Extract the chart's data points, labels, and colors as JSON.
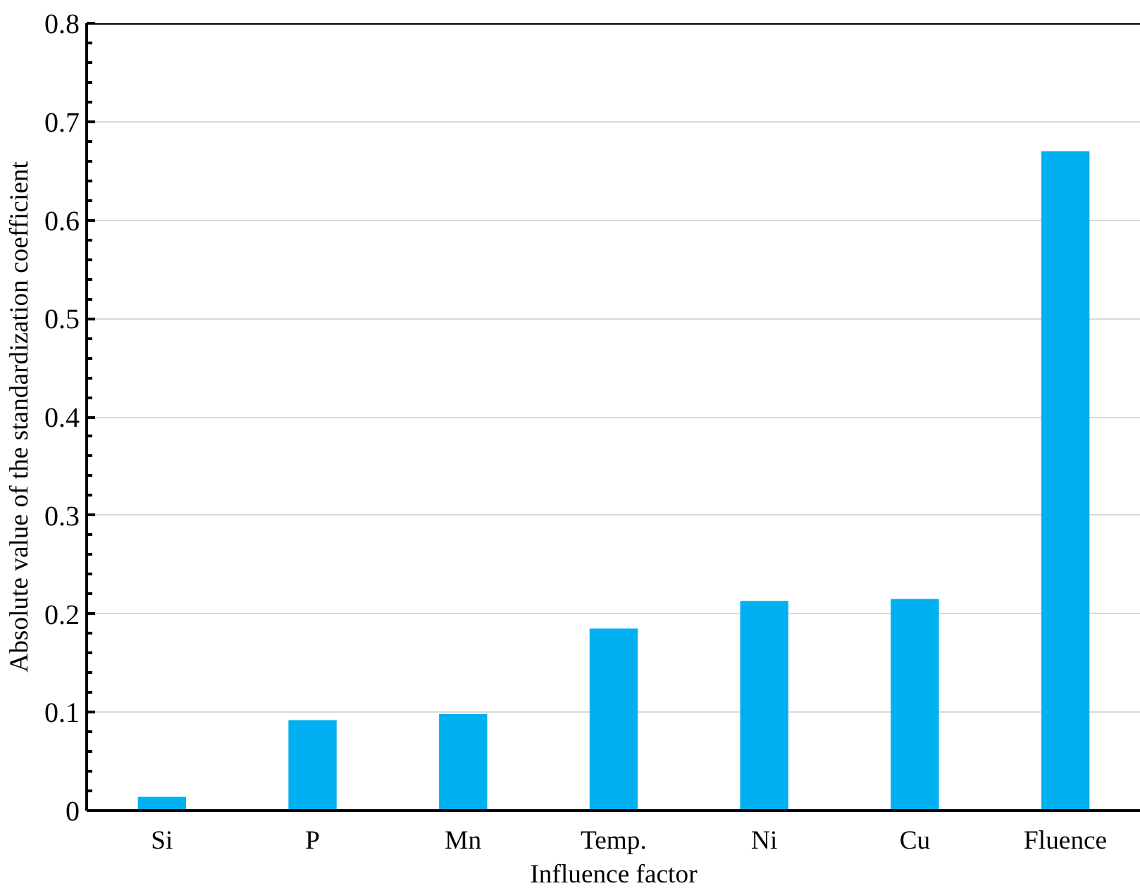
{
  "chart_data": {
    "type": "bar",
    "xlabel": "Influence factor",
    "ylabel": "Absolute value of the standardization coefficient",
    "categories": [
      "Si",
      "P",
      "Mn",
      "Temp.",
      "Ni",
      "Cu",
      "Fluence"
    ],
    "values": [
      0.014,
      0.092,
      0.098,
      0.185,
      0.213,
      0.215,
      0.67
    ],
    "color": "#00b0f0",
    "ylim": [
      0,
      0.8
    ],
    "yticks": [
      {
        "value": 0,
        "label": "0"
      },
      0.1,
      0.2,
      0.3,
      0.4,
      0.5,
      0.6,
      0.7,
      0.8
    ],
    "grid": "y"
  }
}
